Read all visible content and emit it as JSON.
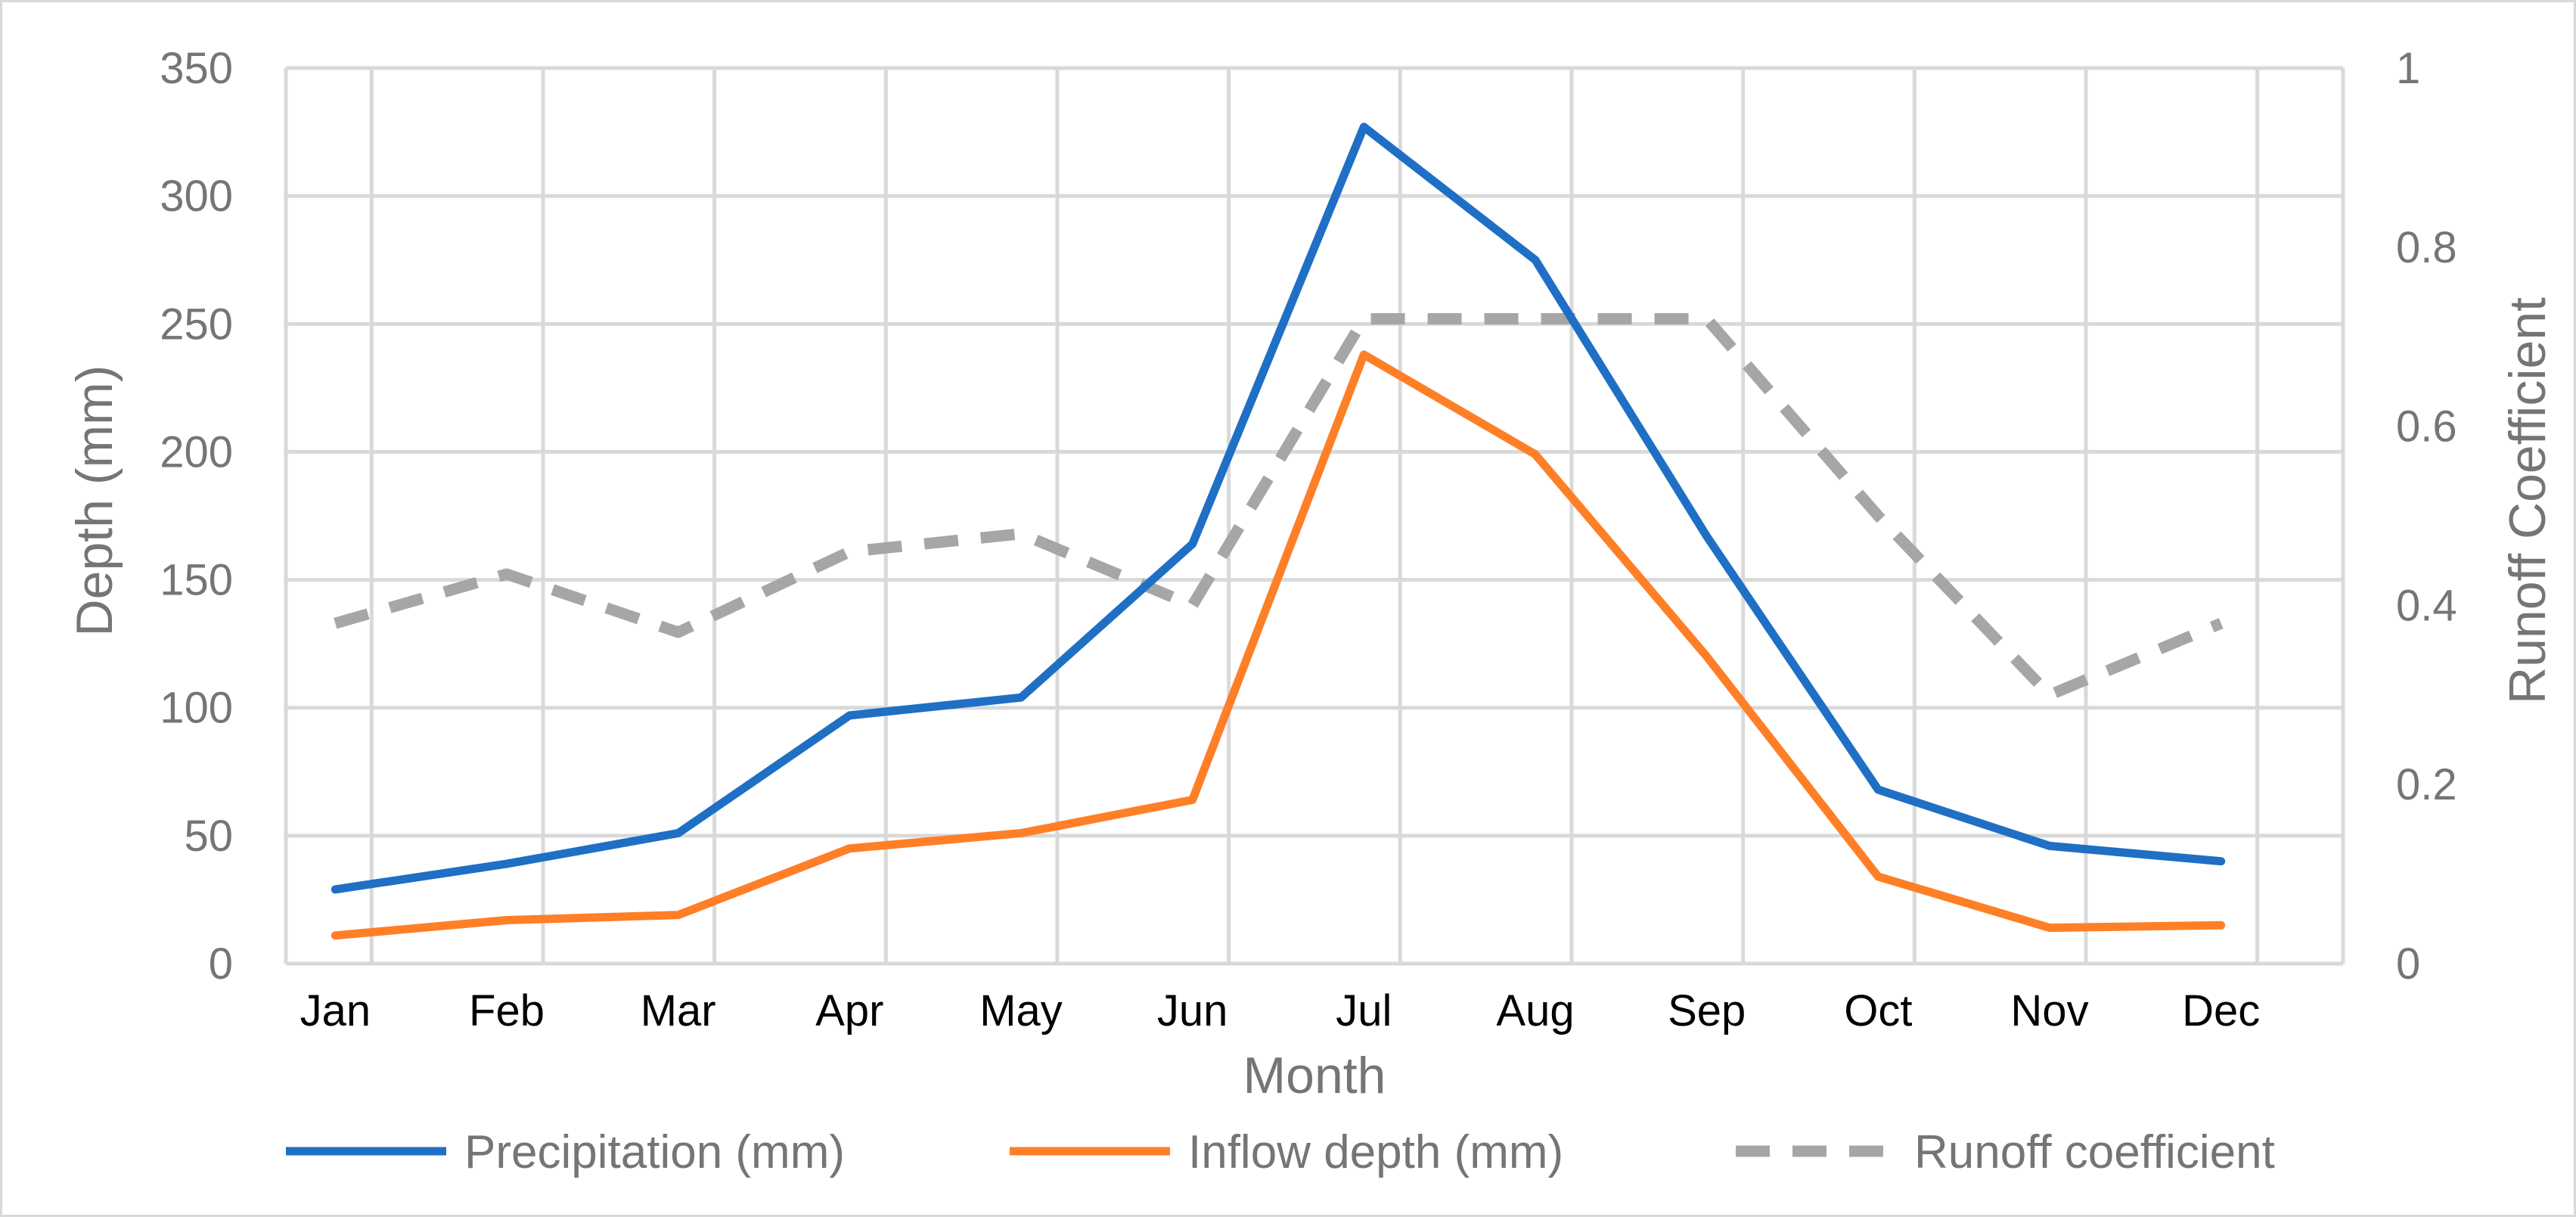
{
  "chart_data": {
    "type": "line",
    "categories": [
      "Jan",
      "Feb",
      "Mar",
      "Apr",
      "May",
      "Jun",
      "Jul",
      "Aug",
      "Sep",
      "Oct",
      "Nov",
      "Dec"
    ],
    "series": [
      {
        "name": "Precipitation (mm)",
        "axis": "left",
        "color": "#1f6fc5",
        "dash": false,
        "values": [
          29,
          39,
          51,
          97,
          104,
          164,
          327,
          275,
          167,
          68,
          46,
          40
        ]
      },
      {
        "name": "Inflow depth (mm)",
        "axis": "left",
        "color": "#ff7f27",
        "dash": false,
        "values": [
          11,
          17,
          19,
          45,
          51,
          64,
          238,
          199,
          120,
          34,
          14,
          15
        ]
      },
      {
        "name": "Runoff coefficient",
        "axis": "right",
        "color": "#a6a6a6",
        "dash": true,
        "values": [
          0.38,
          0.435,
          0.37,
          0.46,
          0.48,
          0.4,
          0.72,
          0.72,
          0.72,
          0.5,
          0.3,
          0.38
        ]
      }
    ],
    "xlabel": "Month",
    "ylabel": "Depth (mm)",
    "y2label": "Runoff Coefficient",
    "ylim": [
      0,
      350
    ],
    "yticks": [
      0,
      50,
      100,
      150,
      200,
      250,
      300,
      350
    ],
    "y2lim": [
      0,
      1
    ],
    "y2ticks": [
      "0",
      "0.2",
      "0.4",
      "0.6",
      "0.8",
      "1"
    ],
    "grid": true,
    "legend_position": "bottom"
  }
}
